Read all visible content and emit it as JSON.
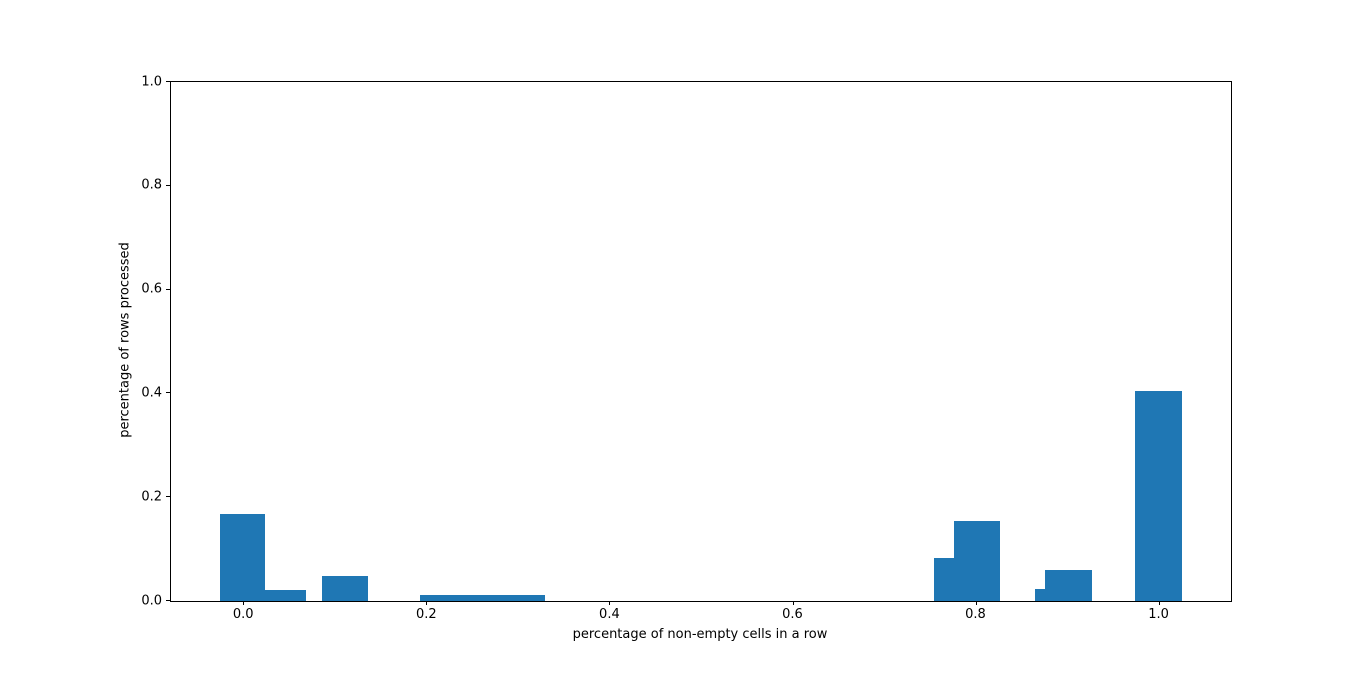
{
  "figure": {
    "background_color": "#ffffff",
    "axis_color": "#000000",
    "bar_color": "#1f77b4"
  },
  "chart_data": {
    "type": "bar",
    "title": "",
    "xlabel": "percentage of non-empty cells in a row",
    "ylabel": "percentage of rows processed",
    "xlim": [
      -0.08,
      1.078
    ],
    "ylim": [
      0,
      1.0
    ],
    "xticks": [
      0.0,
      0.2,
      0.4,
      0.6,
      0.8,
      1.0
    ],
    "yticks": [
      0.0,
      0.2,
      0.4,
      0.6,
      0.8,
      1.0
    ],
    "xtick_labels": [
      "0.0",
      "0.2",
      "0.4",
      "0.6",
      "0.8",
      "1.0"
    ],
    "ytick_labels": [
      "0.0",
      "0.2",
      "0.4",
      "0.6",
      "0.8",
      "1.0"
    ],
    "grid": false,
    "legend": null,
    "bars": [
      {
        "x0": -0.027,
        "x1": 0.023,
        "height": 0.168
      },
      {
        "x0": 0.023,
        "x1": 0.068,
        "height": 0.022
      },
      {
        "x0": 0.085,
        "x1": 0.135,
        "height": 0.048
      },
      {
        "x0": 0.192,
        "x1": 0.329,
        "height": 0.012
      },
      {
        "x0": 0.753,
        "x1": 0.775,
        "height": 0.083
      },
      {
        "x0": 0.775,
        "x1": 0.826,
        "height": 0.155
      },
      {
        "x0": 0.864,
        "x1": 0.875,
        "height": 0.024
      },
      {
        "x0": 0.875,
        "x1": 0.926,
        "height": 0.059
      },
      {
        "x0": 0.973,
        "x1": 1.024,
        "height": 0.404
      }
    ]
  }
}
